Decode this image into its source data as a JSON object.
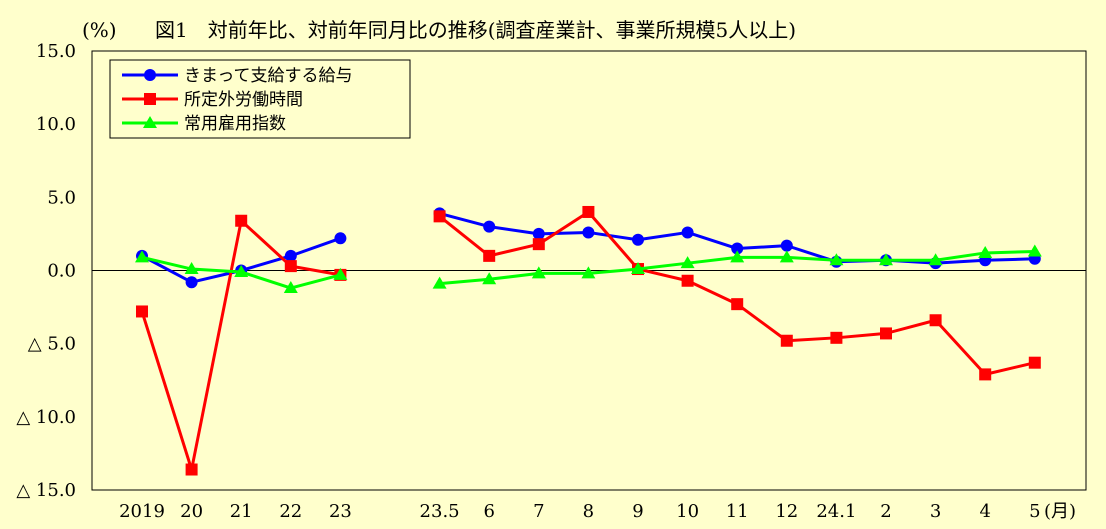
{
  "chart_data": {
    "type": "line",
    "title": "図1　対前年比、対前年同月比の推移(調査産業計、事業所規模5人以上)",
    "y_unit": "(%)",
    "x_unit": "(月)",
    "ylim": [
      -15,
      15
    ],
    "y_ticks": [
      {
        "value": 15,
        "label": "15.0"
      },
      {
        "value": 10,
        "label": "10.0"
      },
      {
        "value": 5,
        "label": "5.0"
      },
      {
        "value": 0,
        "label": "0.0"
      },
      {
        "value": -5,
        "label": "△ 5.0"
      },
      {
        "value": -10,
        "label": "△ 10.0"
      },
      {
        "value": -15,
        "label": "△ 15.0"
      }
    ],
    "categories": [
      "2019",
      "20",
      "21",
      "22",
      "23",
      "",
      "23.5",
      "6",
      "7",
      "8",
      "9",
      "10",
      "11",
      "12",
      "24.1",
      "2",
      "3",
      "4",
      "5"
    ],
    "grid": false,
    "legend_position": "top-left",
    "series": [
      {
        "name": "きまって支給する給与",
        "color": "#0000FF",
        "marker": "circle",
        "values": [
          1.0,
          -0.8,
          0.0,
          1.0,
          2.2,
          null,
          3.9,
          3.0,
          2.5,
          2.6,
          2.1,
          2.6,
          1.5,
          1.7,
          0.6,
          0.7,
          0.5,
          0.7,
          0.8
        ]
      },
      {
        "name": "所定外労働時間",
        "color": "#FF0000",
        "marker": "square",
        "values": [
          -2.8,
          -13.6,
          3.4,
          0.3,
          -0.3,
          null,
          3.7,
          1.0,
          1.8,
          4.0,
          0.1,
          -0.7,
          -2.3,
          -4.8,
          -4.6,
          -4.3,
          -3.4,
          -7.1,
          -6.3
        ]
      },
      {
        "name": "常用雇用指数",
        "color": "#00FF00",
        "marker": "triangle",
        "values": [
          0.9,
          0.1,
          -0.1,
          -1.2,
          -0.3,
          null,
          -0.9,
          -0.6,
          -0.2,
          -0.2,
          0.1,
          0.5,
          0.9,
          0.9,
          0.7,
          0.7,
          0.7,
          1.2,
          1.3
        ]
      }
    ]
  }
}
